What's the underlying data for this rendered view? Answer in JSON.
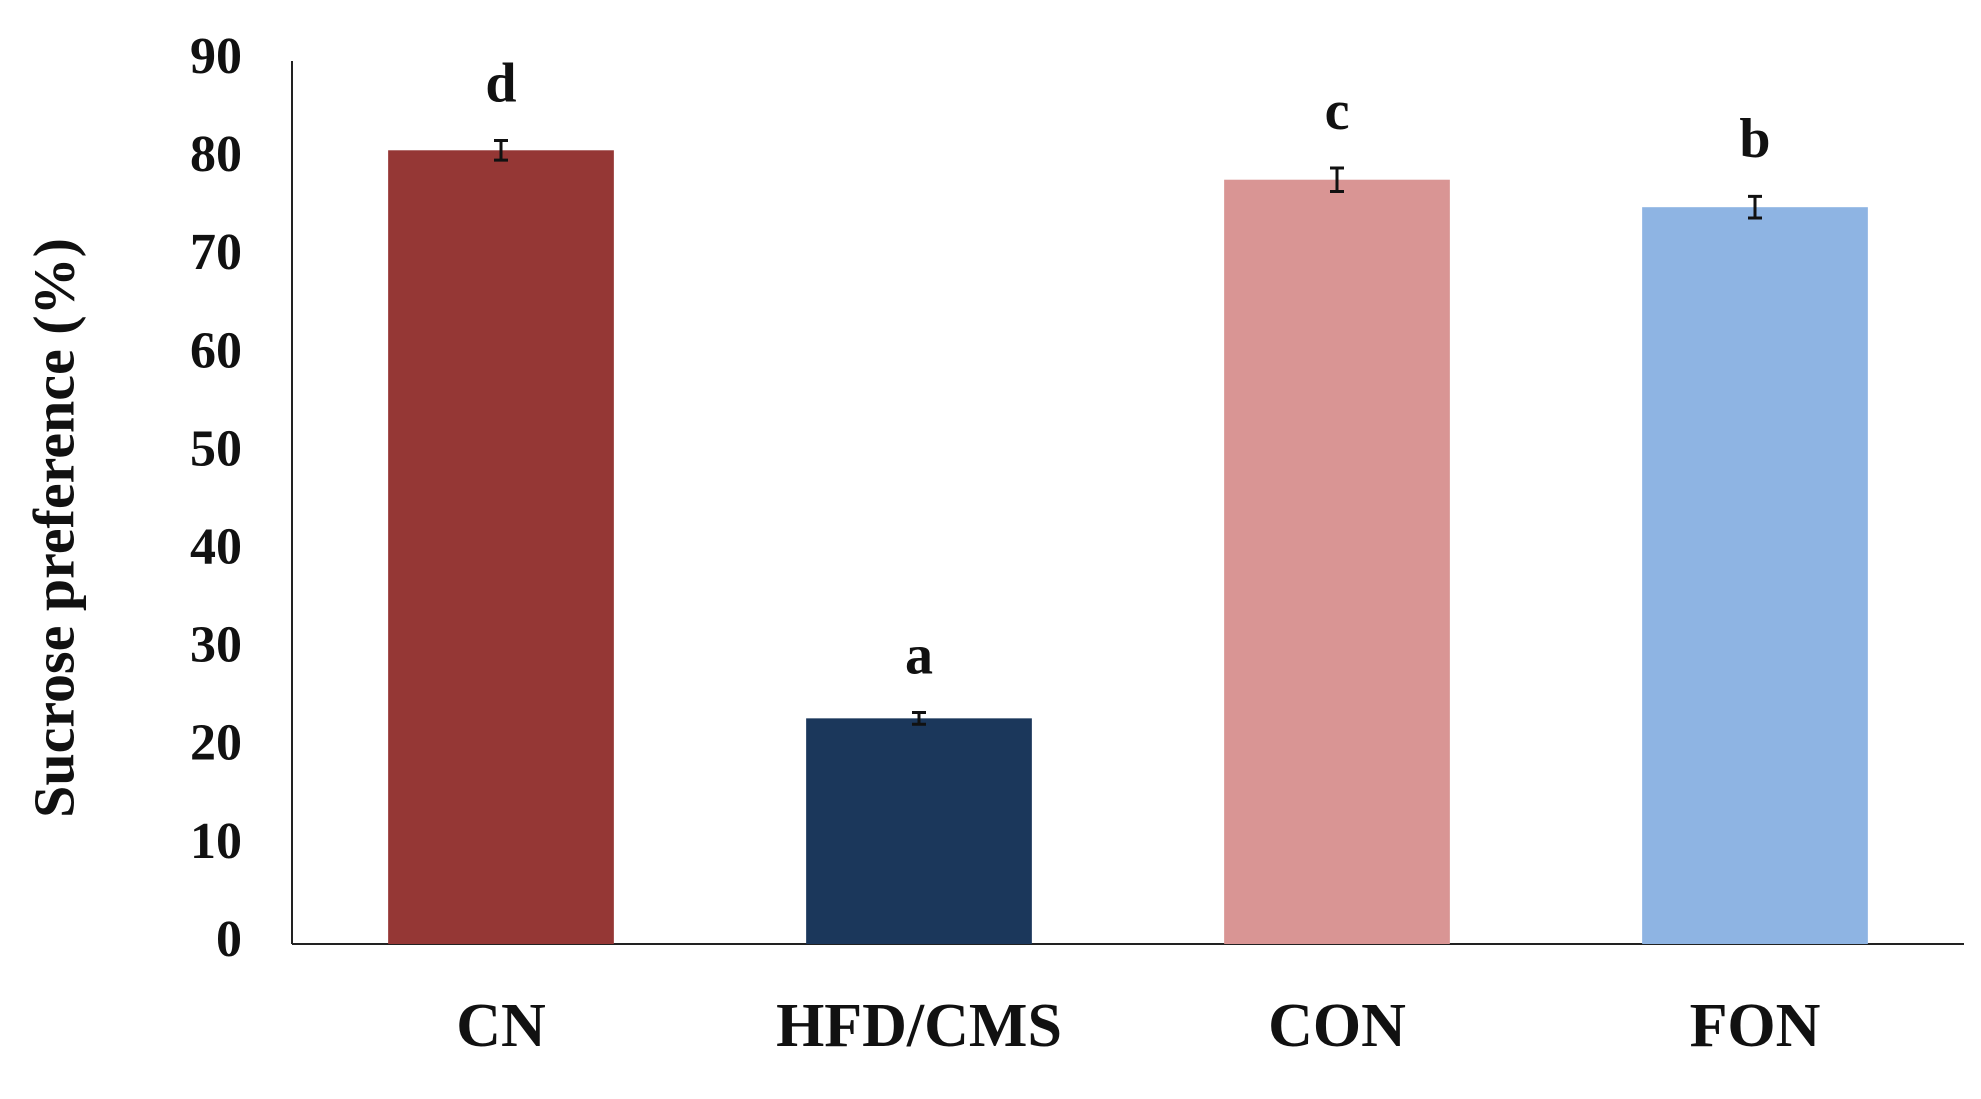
{
  "chart_data": {
    "type": "bar",
    "y_label": "Sucrose preference (%)",
    "categories": [
      "CN",
      "HFD/CMS",
      "CON",
      "FON"
    ],
    "values": [
      80.9,
      23.0,
      77.9,
      75.1
    ],
    "errors": [
      1.0,
      0.6,
      1.2,
      1.1
    ],
    "annotations": [
      "d",
      "a",
      "c",
      "b"
    ],
    "colors": [
      "#953735",
      "#1b375b",
      "#d99594",
      "#8eb4e3"
    ],
    "ylim": [
      0,
      90
    ],
    "yticks": [
      0,
      10,
      20,
      30,
      40,
      50,
      60,
      70,
      80,
      90
    ],
    "grid": false
  }
}
